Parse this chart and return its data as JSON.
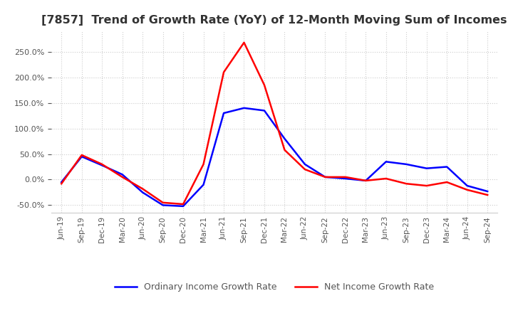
{
  "title": "[7857]  Trend of Growth Rate (YoY) of 12-Month Moving Sum of Incomes",
  "title_fontsize": 11.5,
  "legend_entries": [
    "Ordinary Income Growth Rate",
    "Net Income Growth Rate"
  ],
  "line_colors": [
    "blue",
    "red"
  ],
  "background_color": "#ffffff",
  "grid_color": "#cccccc",
  "ylim": [
    -0.65,
    2.9
  ],
  "yticks": [
    -0.5,
    0.0,
    0.5,
    1.0,
    1.5,
    2.0,
    2.5
  ],
  "dates": [
    "Jun-19",
    "Sep-19",
    "Dec-19",
    "Mar-20",
    "Jun-20",
    "Sep-20",
    "Dec-20",
    "Mar-21",
    "Jun-21",
    "Sep-21",
    "Dec-21",
    "Mar-22",
    "Jun-22",
    "Sep-22",
    "Dec-22",
    "Mar-23",
    "Jun-23",
    "Sep-23",
    "Dec-23",
    "Mar-24",
    "Jun-24",
    "Sep-24"
  ],
  "ordinary_income": [
    -0.05,
    0.45,
    0.28,
    0.1,
    -0.25,
    -0.5,
    -0.52,
    -0.1,
    1.3,
    1.4,
    1.35,
    0.8,
    0.3,
    0.05,
    0.02,
    -0.02,
    0.35,
    0.3,
    0.22,
    0.25,
    -0.12,
    -0.23
  ],
  "net_income": [
    -0.08,
    0.48,
    0.3,
    0.05,
    -0.18,
    -0.45,
    -0.48,
    0.3,
    2.1,
    2.68,
    1.85,
    0.58,
    0.2,
    0.05,
    0.05,
    -0.02,
    0.02,
    -0.08,
    -0.12,
    -0.05,
    -0.2,
    -0.3
  ]
}
